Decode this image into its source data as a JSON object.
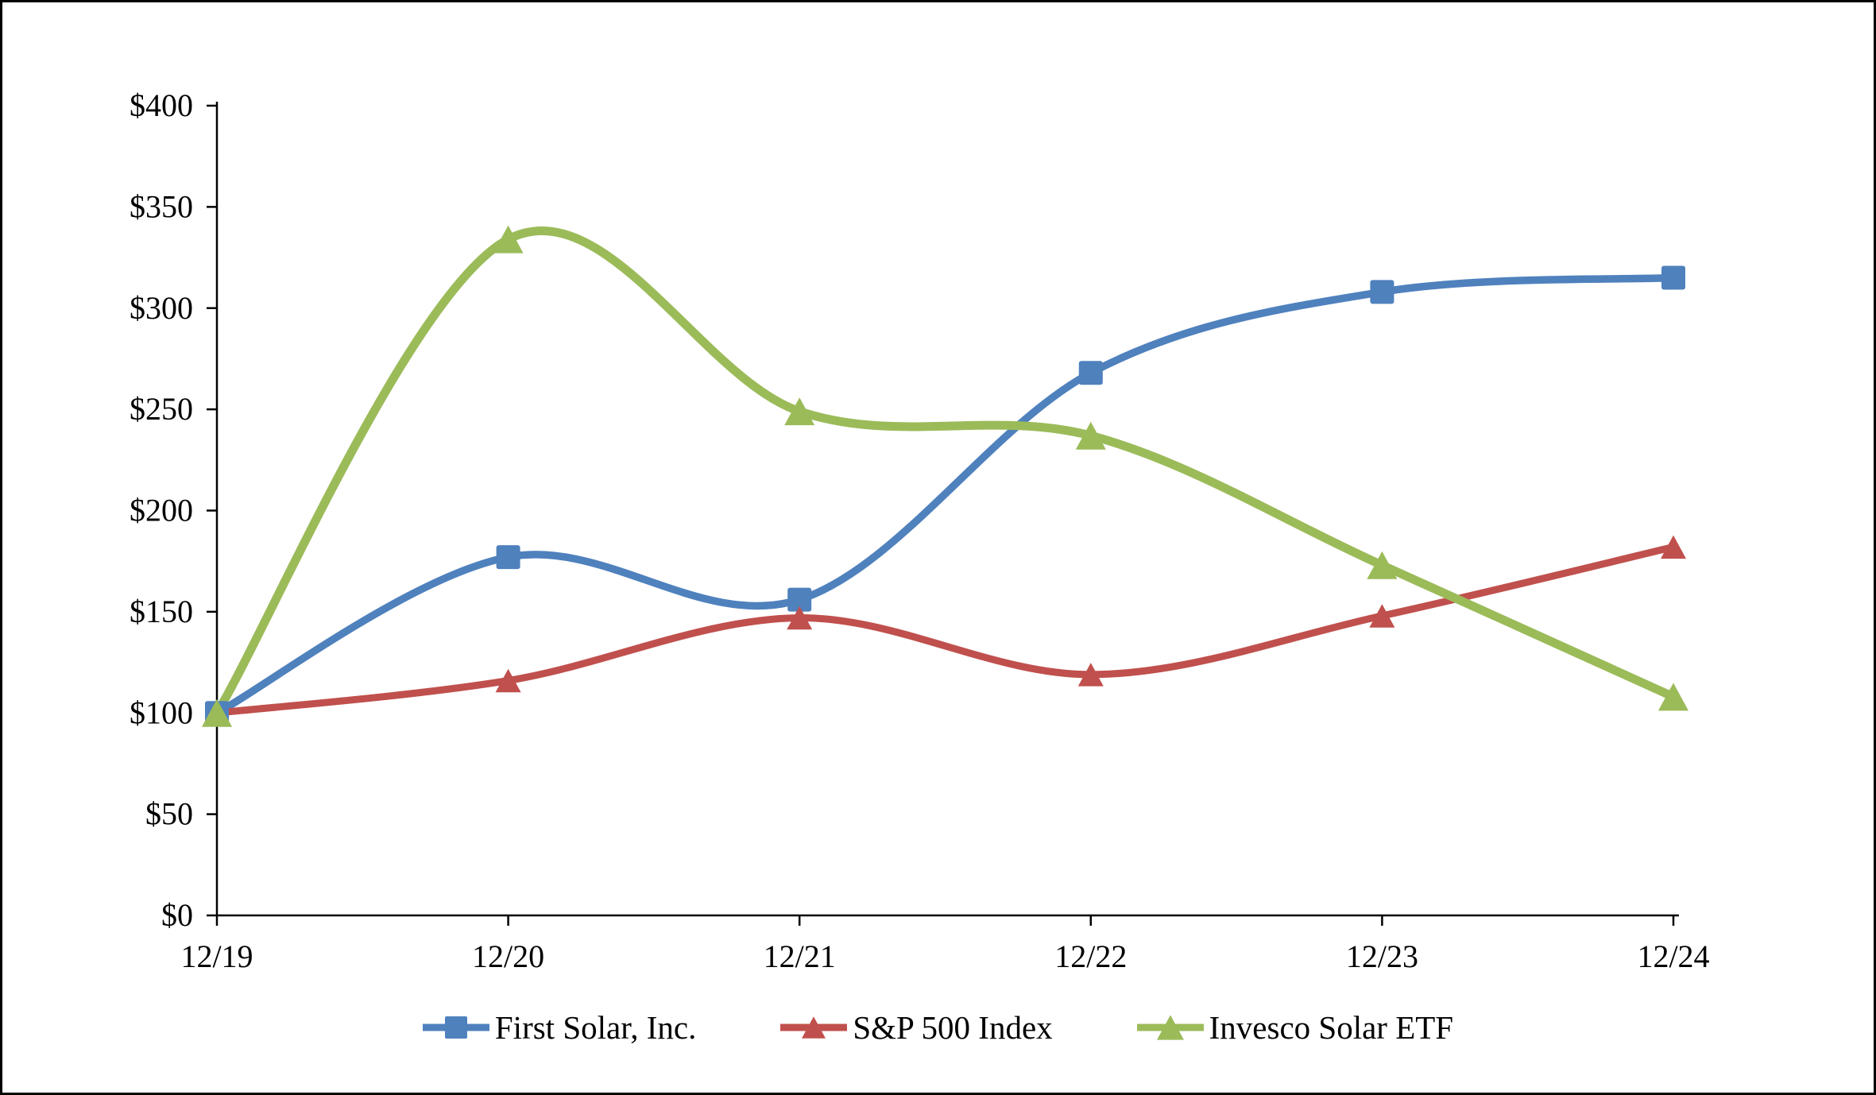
{
  "chart_data": {
    "type": "line",
    "smoothed": true,
    "grid": false,
    "legend_position": "bottom",
    "title": "",
    "xlabel": "",
    "ylabel": "",
    "categories": [
      "12/19",
      "12/20",
      "12/21",
      "12/22",
      "12/23",
      "12/24"
    ],
    "ylim": [
      0,
      400
    ],
    "ytick_step": 50,
    "ytick_labels": [
      "$0",
      "$50",
      "$100",
      "$150",
      "$200",
      "$250",
      "$300",
      "$350",
      "$400"
    ],
    "series": [
      {
        "name": "First Solar, Inc.",
        "color": "#4F81BD",
        "marker": "square",
        "values": [
          100,
          177,
          156,
          268,
          308,
          315
        ]
      },
      {
        "name": "S&P 500 Index",
        "color": "#C0504D",
        "marker": "triangle",
        "values": [
          100,
          116,
          147,
          119,
          148,
          182
        ]
      },
      {
        "name": "Invesco Solar ETF",
        "color": "#9BBB59",
        "marker": "triangle",
        "values": [
          100,
          334,
          249,
          237,
          173,
          108
        ]
      }
    ]
  }
}
